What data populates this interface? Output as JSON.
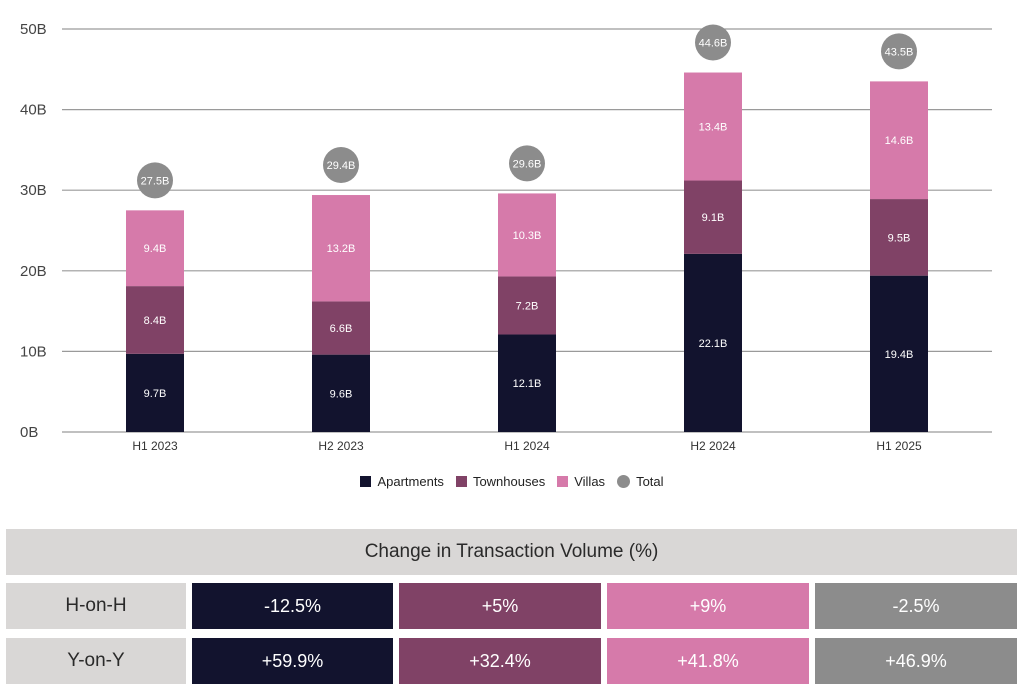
{
  "colors": {
    "apartments": "#12132e",
    "townhouses": "#804266",
    "villas": "#d67aaa",
    "total": "#8c8c8c",
    "grid": "#9a9a9a",
    "table_header_bg": "#d9d7d6"
  },
  "chart_data": {
    "type": "bar",
    "stacked": true,
    "categories": [
      "H1 2023",
      "H2 2023",
      "H1 2024",
      "H2 2024",
      "H1 2025"
    ],
    "series": [
      {
        "name": "Apartments",
        "values": [
          9.7,
          9.6,
          12.1,
          22.1,
          19.4
        ],
        "labels": [
          "9.7B",
          "9.6B",
          "12.1B",
          "22.1B",
          "19.4B"
        ]
      },
      {
        "name": "Townhouses",
        "values": [
          8.4,
          6.6,
          7.2,
          9.1,
          9.5
        ],
        "labels": [
          "8.4B",
          "6.6B",
          "7.2B",
          "9.1B",
          "9.5B"
        ]
      },
      {
        "name": "Villas",
        "values": [
          9.4,
          13.2,
          10.3,
          13.4,
          14.6
        ],
        "labels": [
          "9.4B",
          "13.2B",
          "10.3B",
          "13.4B",
          "14.6B"
        ]
      }
    ],
    "totals": {
      "name": "Total",
      "values": [
        27.5,
        29.4,
        29.6,
        44.6,
        43.5
      ],
      "labels": [
        "27.5B",
        "29.4B",
        "29.6B",
        "44.6B",
        "43.5B"
      ]
    },
    "ylim": [
      0,
      50
    ],
    "yticks": [
      0,
      10,
      20,
      30,
      40,
      50
    ],
    "ytick_labels": [
      "0B",
      "10B",
      "20B",
      "30B",
      "40B",
      "50B"
    ],
    "grid": true,
    "legend_position": "bottom-center"
  },
  "legend": {
    "apartments": "Apartments",
    "townhouses": "Townhouses",
    "villas": "Villas",
    "total": "Total"
  },
  "table": {
    "title": "Change in Transaction Volume (%)",
    "rows": [
      {
        "label": "H-on-H",
        "values": [
          "-12.5%",
          "+5%",
          "+9%",
          "-2.5%"
        ]
      },
      {
        "label": "Y-on-Y",
        "values": [
          "+59.9%",
          "+32.4%",
          "+41.8%",
          "+46.9%"
        ]
      }
    ]
  }
}
